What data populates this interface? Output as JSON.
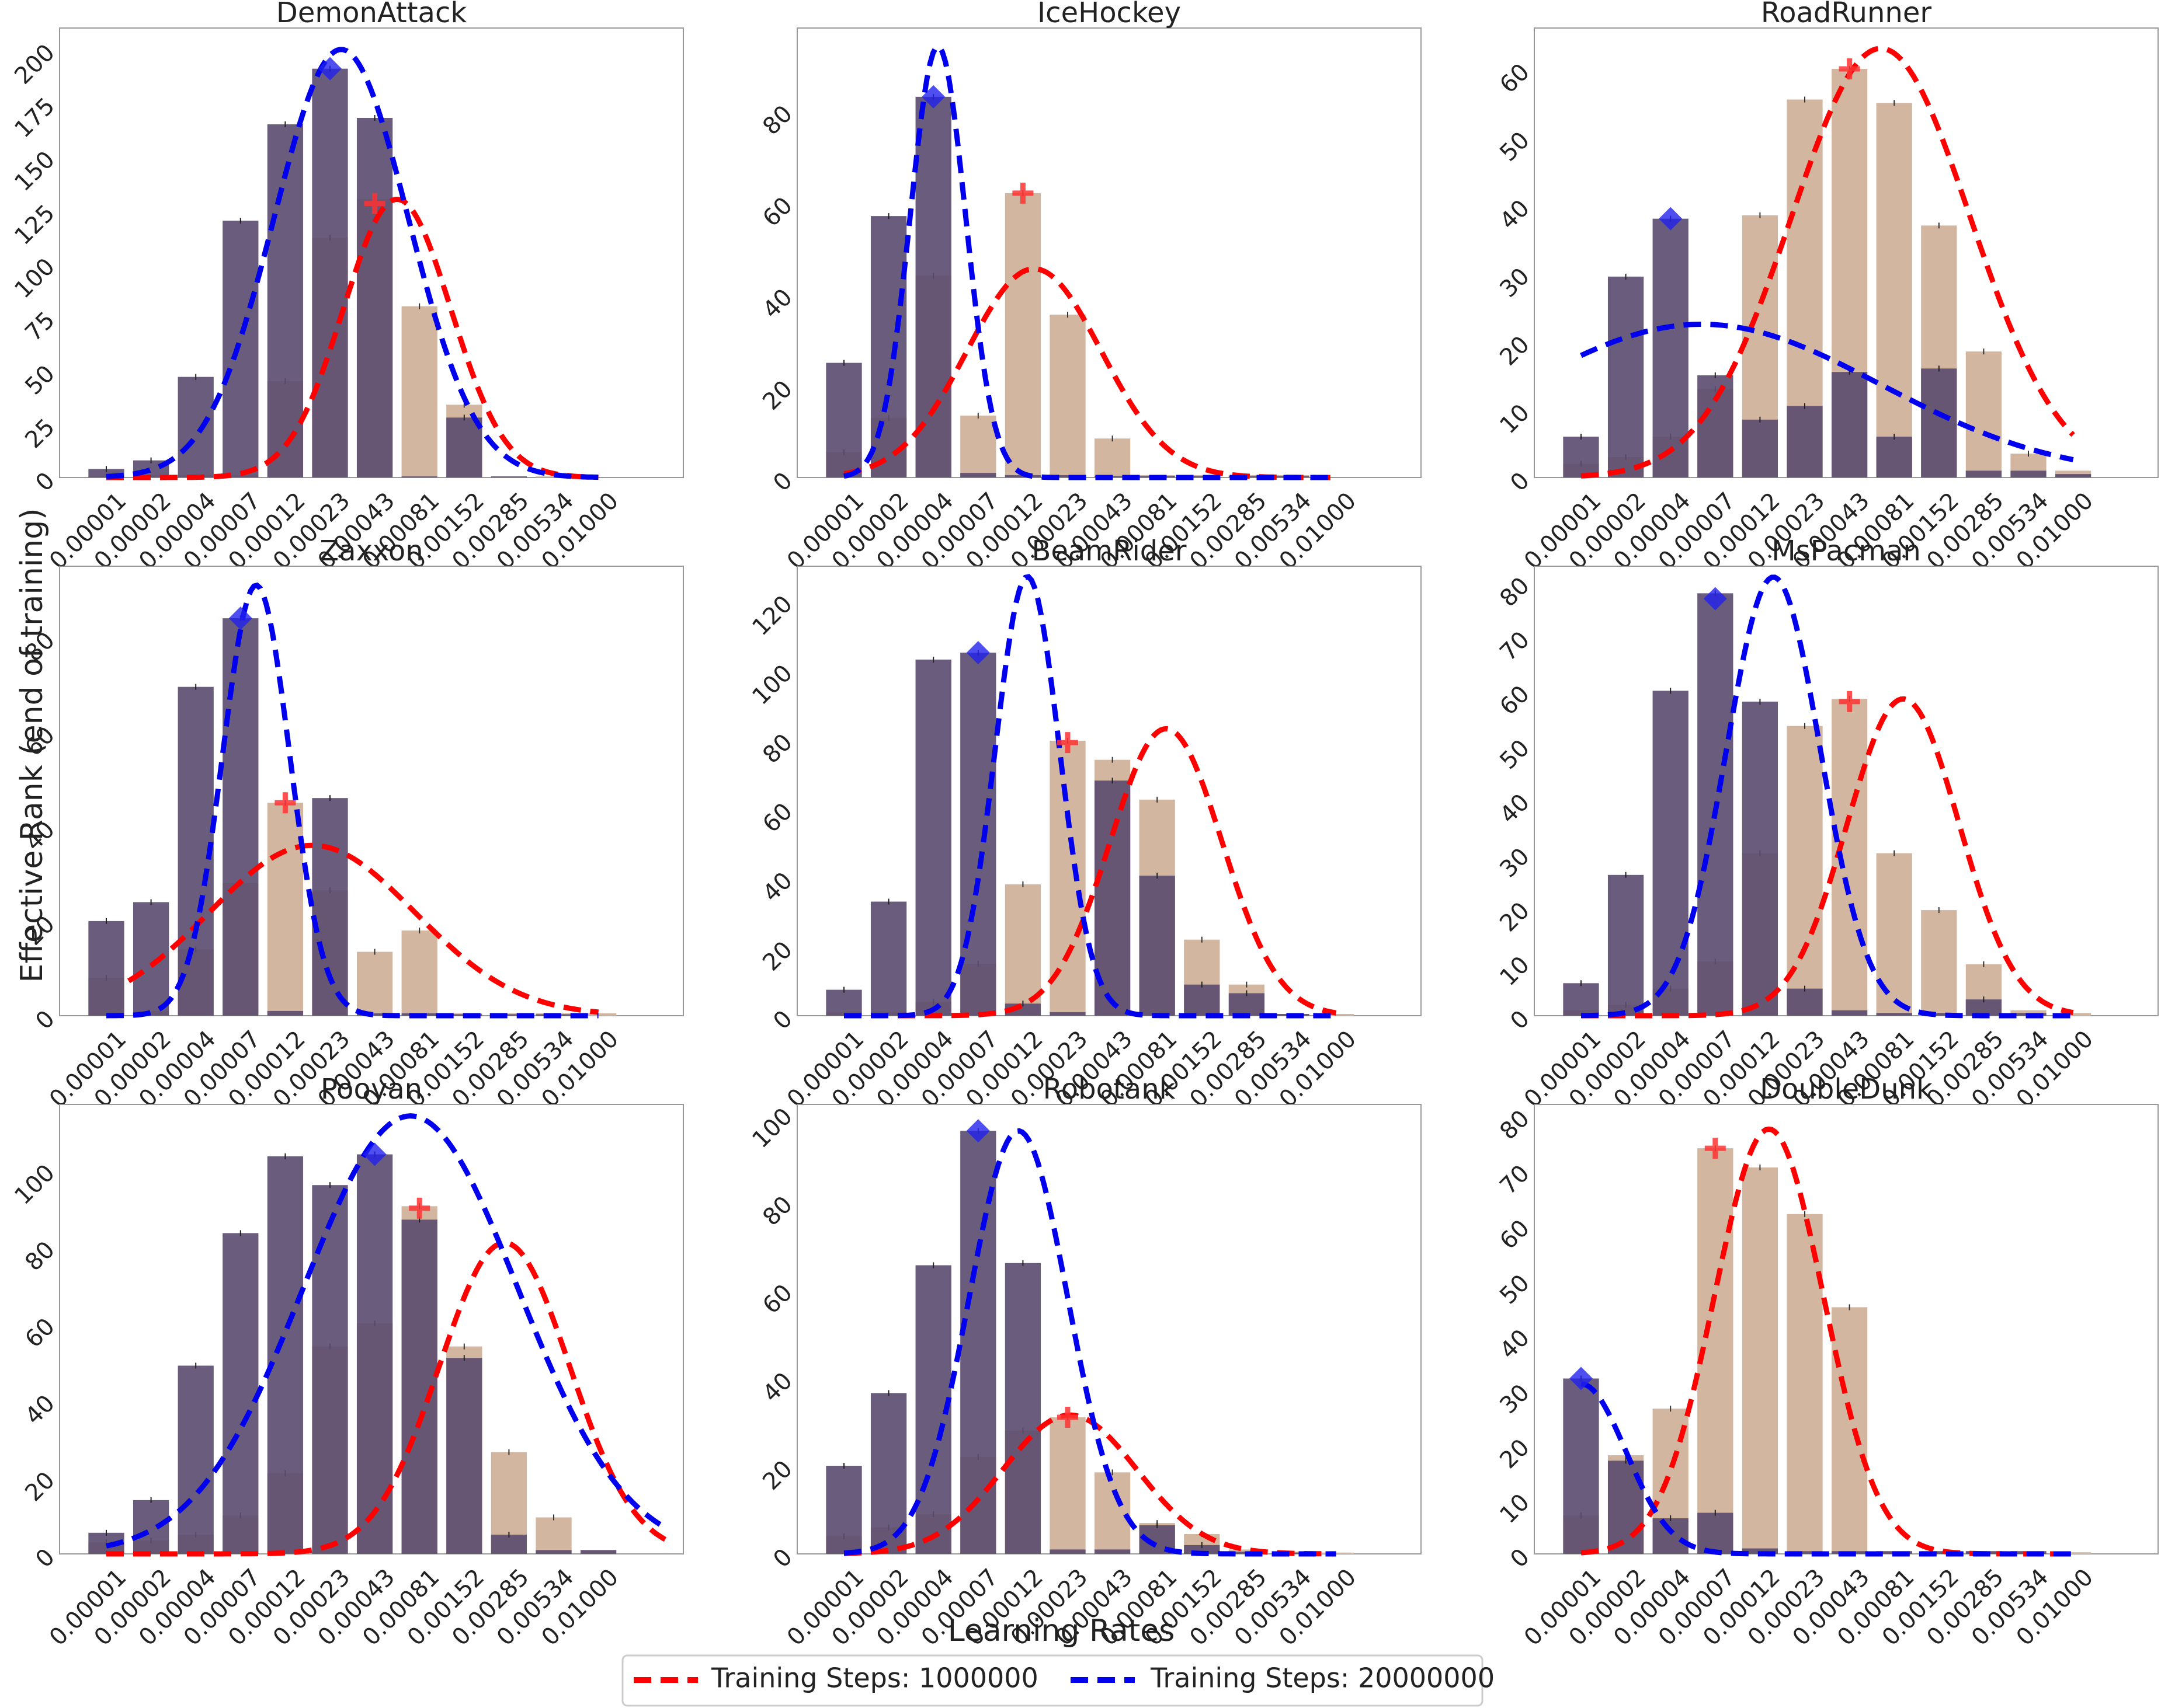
{
  "figure": {
    "ylabel": "Effective Rank (end of training)",
    "xlabel": "Learning Rates",
    "colors": {
      "bar_1M": "#d2b6a0",
      "bar_20M": "#5a4a6e",
      "curve_1M": "#ff0000",
      "curve_20M": "#0000ee",
      "frame": "#999999",
      "text": "#222222"
    }
  },
  "legend": {
    "entries": [
      {
        "label": "Training Steps: 1000000",
        "color": "#ff0000"
      },
      {
        "label": "Training Steps: 20000000",
        "color": "#0000ee"
      }
    ]
  },
  "chart_data": [
    {
      "type": "bar",
      "title": "DemonAttack",
      "categories": [
        "0.00001",
        "0.00002",
        "0.00004",
        "0.00007",
        "0.00012",
        "0.00023",
        "0.00043",
        "0.00081",
        "0.00152",
        "0.00285",
        "0.00534",
        "0.01000"
      ],
      "ylim": [
        0,
        210
      ],
      "yticks": [
        0,
        25,
        50,
        75,
        100,
        125,
        150,
        175,
        200
      ],
      "series": [
        {
          "name": "Training Steps: 1000000",
          "values": [
            0.5,
            1,
            1,
            1,
            45,
            112,
            130,
            80,
            34,
            0.5,
            0.5,
            0
          ]
        },
        {
          "name": "Training Steps: 20000000",
          "values": [
            4,
            8,
            47,
            120,
            165,
            191,
            168,
            0.5,
            28,
            0.5,
            0,
            0
          ]
        }
      ],
      "fits": [
        {
          "name": "Training Steps: 1000000",
          "peak": 130,
          "center": 6.5,
          "sigma": 1.2,
          "start": 0,
          "end": 11
        },
        {
          "name": "Training Steps: 20000000",
          "peak": 200,
          "center": 5.25,
          "sigma": 1.5,
          "start": 0,
          "end": 11
        }
      ],
      "markers": [
        {
          "series": "Training Steps: 1000000",
          "category": "0.00043",
          "value": 128
        },
        {
          "series": "Training Steps: 20000000",
          "category": "0.00023",
          "value": 191
        }
      ]
    },
    {
      "type": "bar",
      "title": "IceHockey",
      "categories": [
        "0.00001",
        "0.00002",
        "0.00004",
        "0.00007",
        "0.00012",
        "0.00023",
        "0.00043",
        "0.00081",
        "0.00152",
        "0.00285",
        "0.00534",
        "0.01000"
      ],
      "ylim": [
        0,
        98
      ],
      "yticks": [
        0,
        20,
        40,
        60,
        80
      ],
      "series": [
        {
          "name": "Training Steps: 1000000",
          "values": [
            5.5,
            13,
            44,
            13.5,
            62,
            35.5,
            8.5,
            0.5,
            0.5,
            0.5,
            0.5,
            0
          ]
        },
        {
          "name": "Training Steps: 20000000",
          "values": [
            25,
            57,
            83,
            1,
            0.5,
            0.5,
            0.3,
            0.3,
            0.3,
            0.3,
            0.3,
            0
          ]
        }
      ],
      "fits": [
        {
          "name": "Training Steps: 1000000",
          "peak": 45.5,
          "center": 4.25,
          "sigma": 1.5,
          "start": 0,
          "end": 11
        },
        {
          "name": "Training Steps: 20000000",
          "peak": 94,
          "center": 2.1,
          "sigma": 0.62,
          "start": 0,
          "end": 11
        }
      ],
      "markers": [
        {
          "series": "Training Steps: 1000000",
          "category": "0.00012",
          "value": 62
        },
        {
          "series": "Training Steps: 20000000",
          "category": "0.00004",
          "value": 83
        }
      ]
    },
    {
      "type": "bar",
      "title": "RoadRunner",
      "categories": [
        "0.00001",
        "0.00002",
        "0.00004",
        "0.00007",
        "0.00012",
        "0.00023",
        "0.00043",
        "0.00081",
        "0.00152",
        "0.00285",
        "0.00534",
        "0.01000"
      ],
      "ylim": [
        0,
        66
      ],
      "yticks": [
        0,
        10,
        20,
        30,
        40,
        50,
        60
      ],
      "series": [
        {
          "name": "Training Steps: 1000000",
          "values": [
            2,
            3,
            6,
            13,
            38.5,
            55.5,
            60,
            55,
            37,
            18.5,
            3.5,
            1
          ]
        },
        {
          "name": "Training Steps: 20000000",
          "values": [
            6,
            29.5,
            38,
            15,
            8.5,
            10.5,
            15.5,
            6,
            16,
            1,
            1,
            0.5
          ]
        }
      ],
      "fits": [
        {
          "name": "Training Steps: 1000000",
          "peak": 63,
          "center": 6.7,
          "sigma": 2.0,
          "start": 0,
          "end": 11
        },
        {
          "name": "Training Steps: 20000000",
          "peak": 22.5,
          "center": 2.7,
          "sigma": 4.0,
          "start": 0,
          "end": 11
        }
      ],
      "markers": [
        {
          "series": "Training Steps: 1000000",
          "category": "0.00043",
          "value": 60
        },
        {
          "series": "Training Steps: 20000000",
          "category": "0.00004",
          "value": 38
        }
      ]
    },
    {
      "type": "bar",
      "title": "Zaxxon",
      "categories": [
        "0.00001",
        "0.00002",
        "0.00004",
        "0.00007",
        "0.00012",
        "0.00023",
        "0.00043",
        "0.00081",
        "0.00152",
        "0.00285",
        "0.00534",
        "0.01000"
      ],
      "ylim": [
        0,
        95
      ],
      "yticks": [
        0,
        20,
        40,
        60,
        80
      ],
      "series": [
        {
          "name": "Training Steps: 1000000",
          "values": [
            8,
            1,
            14,
            28,
            45,
            26.5,
            13.5,
            18,
            0.5,
            0.5,
            0.5,
            0.5
          ]
        },
        {
          "name": "Training Steps: 20000000",
          "values": [
            20,
            24,
            69.5,
            84,
            1,
            46,
            0.5,
            0.5,
            0.3,
            0.3,
            0.3,
            0
          ]
        }
      ],
      "fits": [
        {
          "name": "Training Steps: 1000000",
          "peak": 36,
          "center": 4.6,
          "sigma": 2.3,
          "start": 0.5,
          "end": 11
        },
        {
          "name": "Training Steps: 20000000",
          "peak": 91,
          "center": 3.35,
          "sigma": 0.75,
          "start": 0,
          "end": 11
        }
      ],
      "markers": [
        {
          "series": "Training Steps: 1000000",
          "category": "0.00012",
          "value": 45
        },
        {
          "series": "Training Steps: 20000000",
          "category": "0.00007",
          "value": 84
        }
      ]
    },
    {
      "type": "bar",
      "title": "BeamRider",
      "categories": [
        "0.00001",
        "0.00002",
        "0.00004",
        "0.00007",
        "0.00012",
        "0.00023",
        "0.00043",
        "0.00081",
        "0.00152",
        "0.00285",
        "0.00534",
        "0.01000"
      ],
      "ylim": [
        0,
        130
      ],
      "yticks": [
        0,
        20,
        40,
        60,
        80,
        100,
        120
      ],
      "series": [
        {
          "name": "Training Steps: 1000000",
          "values": [
            1,
            1,
            4,
            15,
            38,
            79.5,
            74,
            62.5,
            22,
            9,
            0.5,
            0.5
          ]
        },
        {
          "name": "Training Steps: 20000000",
          "values": [
            7.5,
            33,
            103,
            105,
            3.5,
            1,
            68,
            40.5,
            9,
            6.5,
            0.5,
            0
          ]
        }
      ],
      "fits": [
        {
          "name": "Training Steps: 1000000",
          "peak": 83,
          "center": 7.2,
          "sigma": 1.25,
          "start": 0,
          "end": 11
        },
        {
          "name": "Training Steps: 20000000",
          "peak": 127,
          "center": 4.1,
          "sigma": 0.72,
          "start": 0,
          "end": 11
        }
      ],
      "markers": [
        {
          "series": "Training Steps: 1000000",
          "category": "0.00023",
          "value": 79
        },
        {
          "series": "Training Steps: 20000000",
          "category": "0.00007",
          "value": 105
        }
      ]
    },
    {
      "type": "bar",
      "title": "MsPacman",
      "categories": [
        "0.00001",
        "0.00002",
        "0.00004",
        "0.00007",
        "0.00012",
        "0.00023",
        "0.00043",
        "0.00081",
        "0.00152",
        "0.00285",
        "0.00534",
        "0.01000"
      ],
      "ylim": [
        0,
        83
      ],
      "yticks": [
        0,
        10,
        20,
        30,
        40,
        50,
        60,
        70,
        80
      ],
      "series": [
        {
          "name": "Training Steps: 1000000",
          "values": [
            1,
            2,
            5,
            10,
            30,
            53.5,
            58.5,
            30,
            19.5,
            9.5,
            1,
            0.5
          ]
        },
        {
          "name": "Training Steps: 20000000",
          "values": [
            6,
            26,
            60,
            78,
            58,
            5,
            1,
            0.5,
            0.5,
            3,
            0.5,
            0
          ]
        }
      ],
      "fits": [
        {
          "name": "Training Steps: 1000000",
          "peak": 58.5,
          "center": 7.2,
          "sigma": 1.25,
          "start": 0,
          "end": 11
        },
        {
          "name": "Training Steps: 20000000",
          "peak": 81,
          "center": 4.3,
          "sigma": 1.05,
          "start": 0,
          "end": 11
        }
      ],
      "markers": [
        {
          "series": "Training Steps: 1000000",
          "category": "0.00043",
          "value": 58
        },
        {
          "series": "Training Steps: 20000000",
          "category": "0.00007",
          "value": 77
        }
      ]
    },
    {
      "type": "bar",
      "title": "Pooyan",
      "categories": [
        "0.00001",
        "0.00002",
        "0.00004",
        "0.00007",
        "0.00012",
        "0.00023",
        "0.00043",
        "0.00081",
        "0.00152",
        "0.00285",
        "0.00534",
        "0.01000"
      ],
      "ylim": [
        0,
        117
      ],
      "yticks": [
        0,
        20,
        40,
        60,
        80,
        100
      ],
      "series": [
        {
          "name": "Training Steps: 1000000",
          "values": [
            3,
            3.5,
            5,
            10,
            21,
            54,
            60,
            90.5,
            54,
            26.5,
            9.5,
            1
          ]
        },
        {
          "name": "Training Steps: 20000000",
          "values": [
            5.5,
            14,
            49,
            83.5,
            103.5,
            96,
            104,
            87,
            51,
            5,
            1,
            1
          ]
        }
      ],
      "fits": [
        {
          "name": "Training Steps: 1000000",
          "peak": 81,
          "center": 8.9,
          "sigma": 1.45,
          "start": 0,
          "end": 12.5
        },
        {
          "name": "Training Steps: 20000000",
          "peak": 114,
          "center": 6.8,
          "sigma": 2.4,
          "start": 0,
          "end": 12.5
        }
      ],
      "markers": [
        {
          "series": "Training Steps: 1000000",
          "category": "0.00081",
          "value": 90
        },
        {
          "series": "Training Steps: 20000000",
          "category": "0.00043",
          "value": 104
        }
      ]
    },
    {
      "type": "bar",
      "title": "Robotank",
      "categories": [
        "0.00001",
        "0.00002",
        "0.00004",
        "0.00007",
        "0.00012",
        "0.00023",
        "0.00043",
        "0.00081",
        "0.00152",
        "0.00285",
        "0.00534",
        "0.01000"
      ],
      "ylim": [
        0,
        102
      ],
      "yticks": [
        0,
        20,
        40,
        60,
        80,
        100
      ],
      "series": [
        {
          "name": "Training Steps: 1000000",
          "values": [
            4,
            6,
            9,
            22,
            28,
            31,
            18.5,
            7,
            4.5,
            1,
            0.5,
            0.3
          ]
        },
        {
          "name": "Training Steps: 20000000",
          "values": [
            20,
            36.5,
            65.5,
            96,
            66,
            1,
            1,
            6.5,
            2,
            0.5,
            0.3,
            0
          ]
        }
      ],
      "fits": [
        {
          "name": "Training Steps: 1000000",
          "peak": 31.5,
          "center": 5.05,
          "sigma": 1.5,
          "start": 0,
          "end": 11
        },
        {
          "name": "Training Steps: 20000000",
          "peak": 96,
          "center": 3.9,
          "sigma": 1.1,
          "start": 0,
          "end": 11
        }
      ],
      "markers": [
        {
          "series": "Training Steps: 1000000",
          "category": "0.00023",
          "value": 31
        },
        {
          "series": "Training Steps: 20000000",
          "category": "0.00007",
          "value": 96
        }
      ]
    },
    {
      "type": "bar",
      "title": "DoubleDunk",
      "categories": [
        "0.00001",
        "0.00002",
        "0.00004",
        "0.00007",
        "0.00012",
        "0.00023",
        "0.00043",
        "0.00081",
        "0.00152",
        "0.00285",
        "0.00534",
        "0.01000"
      ],
      "ylim": [
        0,
        82
      ],
      "yticks": [
        0,
        10,
        20,
        30,
        40,
        50,
        60,
        70,
        80
      ],
      "series": [
        {
          "name": "Training Steps: 1000000",
          "values": [
            7,
            18,
            26.5,
            74,
            70.5,
            62,
            45,
            0.5,
            0.5,
            0.5,
            0.5,
            0.3
          ]
        },
        {
          "name": "Training Steps: 20000000",
          "values": [
            32,
            17,
            6.5,
            7.5,
            1,
            0.5,
            0.5,
            0.5,
            0.5,
            0.5,
            0.5,
            0
          ]
        }
      ],
      "fits": [
        {
          "name": "Training Steps: 1000000",
          "peak": 77.5,
          "center": 4.2,
          "sigma": 1.22,
          "start": 0,
          "end": 11
        },
        {
          "name": "Training Steps: 20000000",
          "peak": 31,
          "center": 0,
          "sigma": 1.0,
          "start": 0,
          "end": 11
        }
      ],
      "markers": [
        {
          "series": "Training Steps: 1000000",
          "category": "0.00007",
          "value": 74
        },
        {
          "series": "Training Steps: 20000000",
          "category": "0.00001",
          "value": 32
        }
      ]
    }
  ]
}
